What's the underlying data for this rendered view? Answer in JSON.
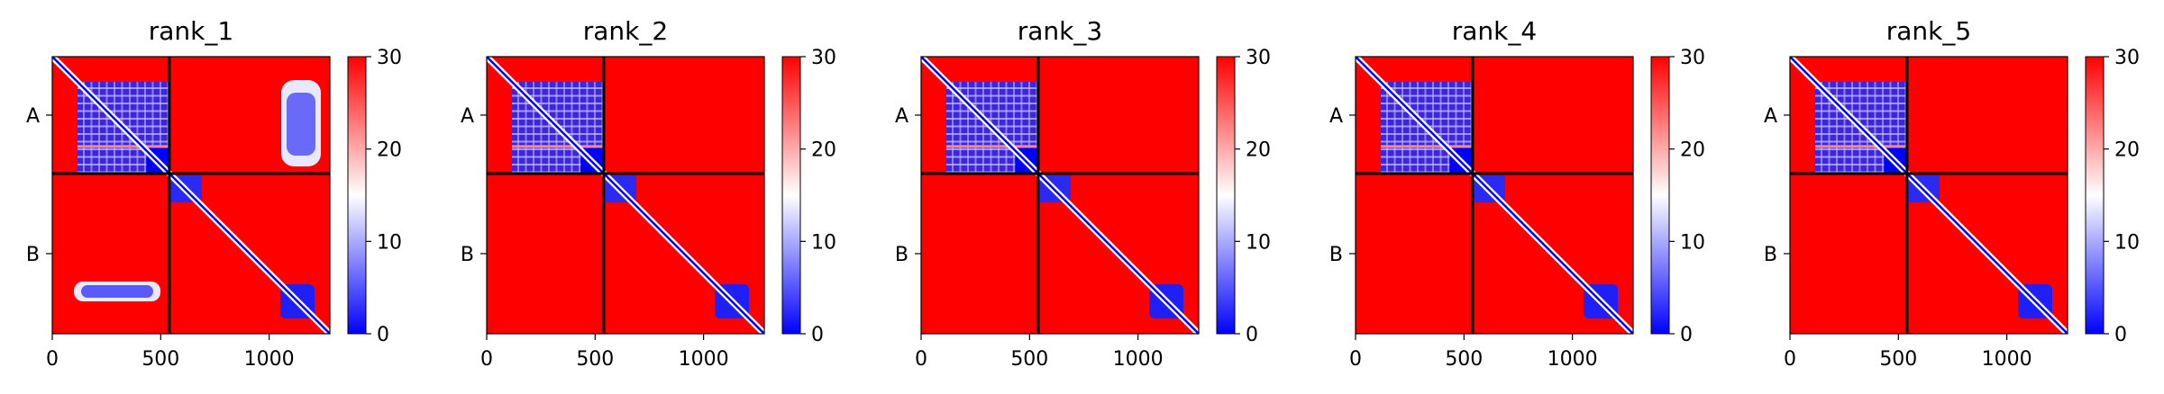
{
  "chart_data": {
    "type": "heatmap",
    "colormap": {
      "name": "bwr",
      "low": "#0000ff",
      "mid": "#ffffff",
      "high": "#ff0000"
    },
    "vmin": 0,
    "vmax": 30,
    "axis_max": 1280,
    "boundary": 540,
    "x_ticks": [
      "0",
      "500",
      "1000"
    ],
    "y_tick_labels": [
      "A",
      "B"
    ],
    "colorbar_ticks": [
      "0",
      "10",
      "20",
      "30"
    ],
    "panels": [
      {
        "title": "rank_1"
      },
      {
        "title": "rank_2"
      },
      {
        "title": "rank_3"
      },
      {
        "title": "rank_4"
      },
      {
        "title": "rank_5"
      }
    ]
  }
}
